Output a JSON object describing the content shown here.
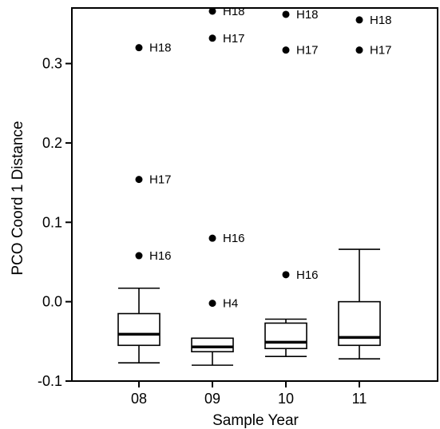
{
  "chart_data": {
    "type": "box",
    "xlabel": "Sample Year",
    "ylabel": "PCO Coord 1 Distance",
    "categories": [
      "08",
      "09",
      "10",
      "11"
    ],
    "ylim": [
      -0.1,
      0.37
    ],
    "yticks": [
      -0.1,
      0.0,
      0.1,
      0.2,
      0.3
    ],
    "ytick_labels": [
      "-0.1",
      "0.0",
      "0.1",
      "0.2",
      "0.3"
    ],
    "grid": false,
    "boxes": [
      {
        "category": "08",
        "whisker_low": -0.077,
        "q1": -0.055,
        "median": -0.041,
        "q3": -0.015,
        "whisker_high": 0.017
      },
      {
        "category": "09",
        "whisker_low": -0.08,
        "q1": -0.063,
        "median": -0.057,
        "q3": -0.046,
        "whisker_high": -0.046
      },
      {
        "category": "10",
        "whisker_low": -0.069,
        "q1": -0.059,
        "median": -0.051,
        "q3": -0.027,
        "whisker_high": -0.022
      },
      {
        "category": "11",
        "whisker_low": -0.072,
        "q1": -0.055,
        "median": -0.045,
        "q3": 0.0,
        "whisker_high": 0.066
      }
    ],
    "outliers": [
      {
        "category": "08",
        "value": 0.32,
        "label": "H18"
      },
      {
        "category": "08",
        "value": 0.154,
        "label": "H17"
      },
      {
        "category": "08",
        "value": 0.058,
        "label": "H16"
      },
      {
        "category": "09",
        "value": 0.366,
        "label": "H18"
      },
      {
        "category": "09",
        "value": 0.332,
        "label": "H17"
      },
      {
        "category": "09",
        "value": 0.08,
        "label": "H16"
      },
      {
        "category": "09",
        "value": -0.002,
        "label": "H4"
      },
      {
        "category": "10",
        "value": 0.362,
        "label": "H18"
      },
      {
        "category": "10",
        "value": 0.317,
        "label": "H17"
      },
      {
        "category": "10",
        "value": 0.034,
        "label": "H16"
      },
      {
        "category": "11",
        "value": 0.355,
        "label": "H18"
      },
      {
        "category": "11",
        "value": 0.317,
        "label": "H17"
      }
    ]
  }
}
